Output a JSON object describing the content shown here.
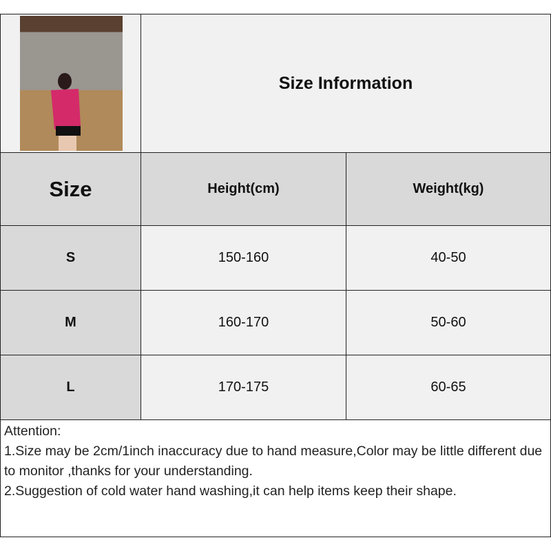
{
  "title": "Size Information",
  "headers": {
    "size": "Size",
    "height": "Height(cm)",
    "weight": "Weight(kg)"
  },
  "rows": [
    {
      "size": "S",
      "height": "150-160",
      "weight": "40-50"
    },
    {
      "size": "M",
      "height": "160-170",
      "weight": "50-60"
    },
    {
      "size": "L",
      "height": "170-175",
      "weight": "60-65"
    }
  ],
  "notes": {
    "heading": "Attention:",
    "line1": "1.Size may be 2cm/1inch inaccuracy due to hand measure,Color may be little different due to monitor ,thanks for your understanding.",
    "line2": "2.Suggestion of cold water hand washing,it can help items keep their shape."
  }
}
